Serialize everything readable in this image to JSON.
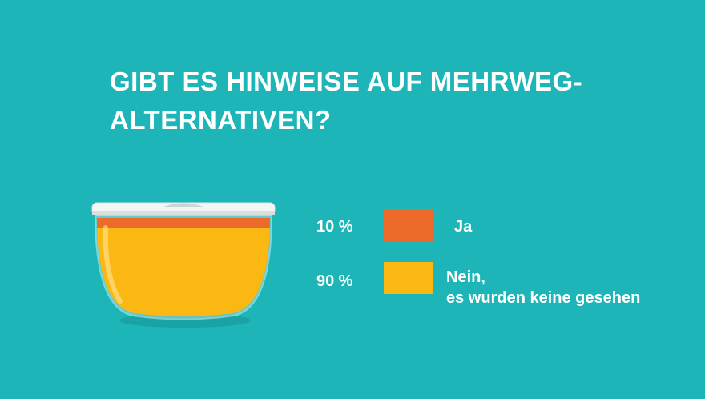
{
  "title_line1": "GIBT ES HINWEISE AUF MEHRWEG-",
  "title_line2": "ALTERNATIVEN?",
  "colors": {
    "background": "#1db5b7",
    "ja": "#ec6b2a",
    "nein": "#fbb812"
  },
  "chart_data": {
    "type": "pie",
    "title": "GIBT ES HINWEISE AUF MEHRWEG-ALTERNATIVEN?",
    "slices": [
      {
        "label": "Ja",
        "value": 10,
        "display": "10 %",
        "color": "#ec6b2a"
      },
      {
        "label": "Nein, es wurden keine gesehen",
        "value": 90,
        "display": "90 %",
        "color": "#fbb812",
        "label_lines": [
          "Nein,",
          "es wurden keine gesehen"
        ]
      }
    ]
  }
}
